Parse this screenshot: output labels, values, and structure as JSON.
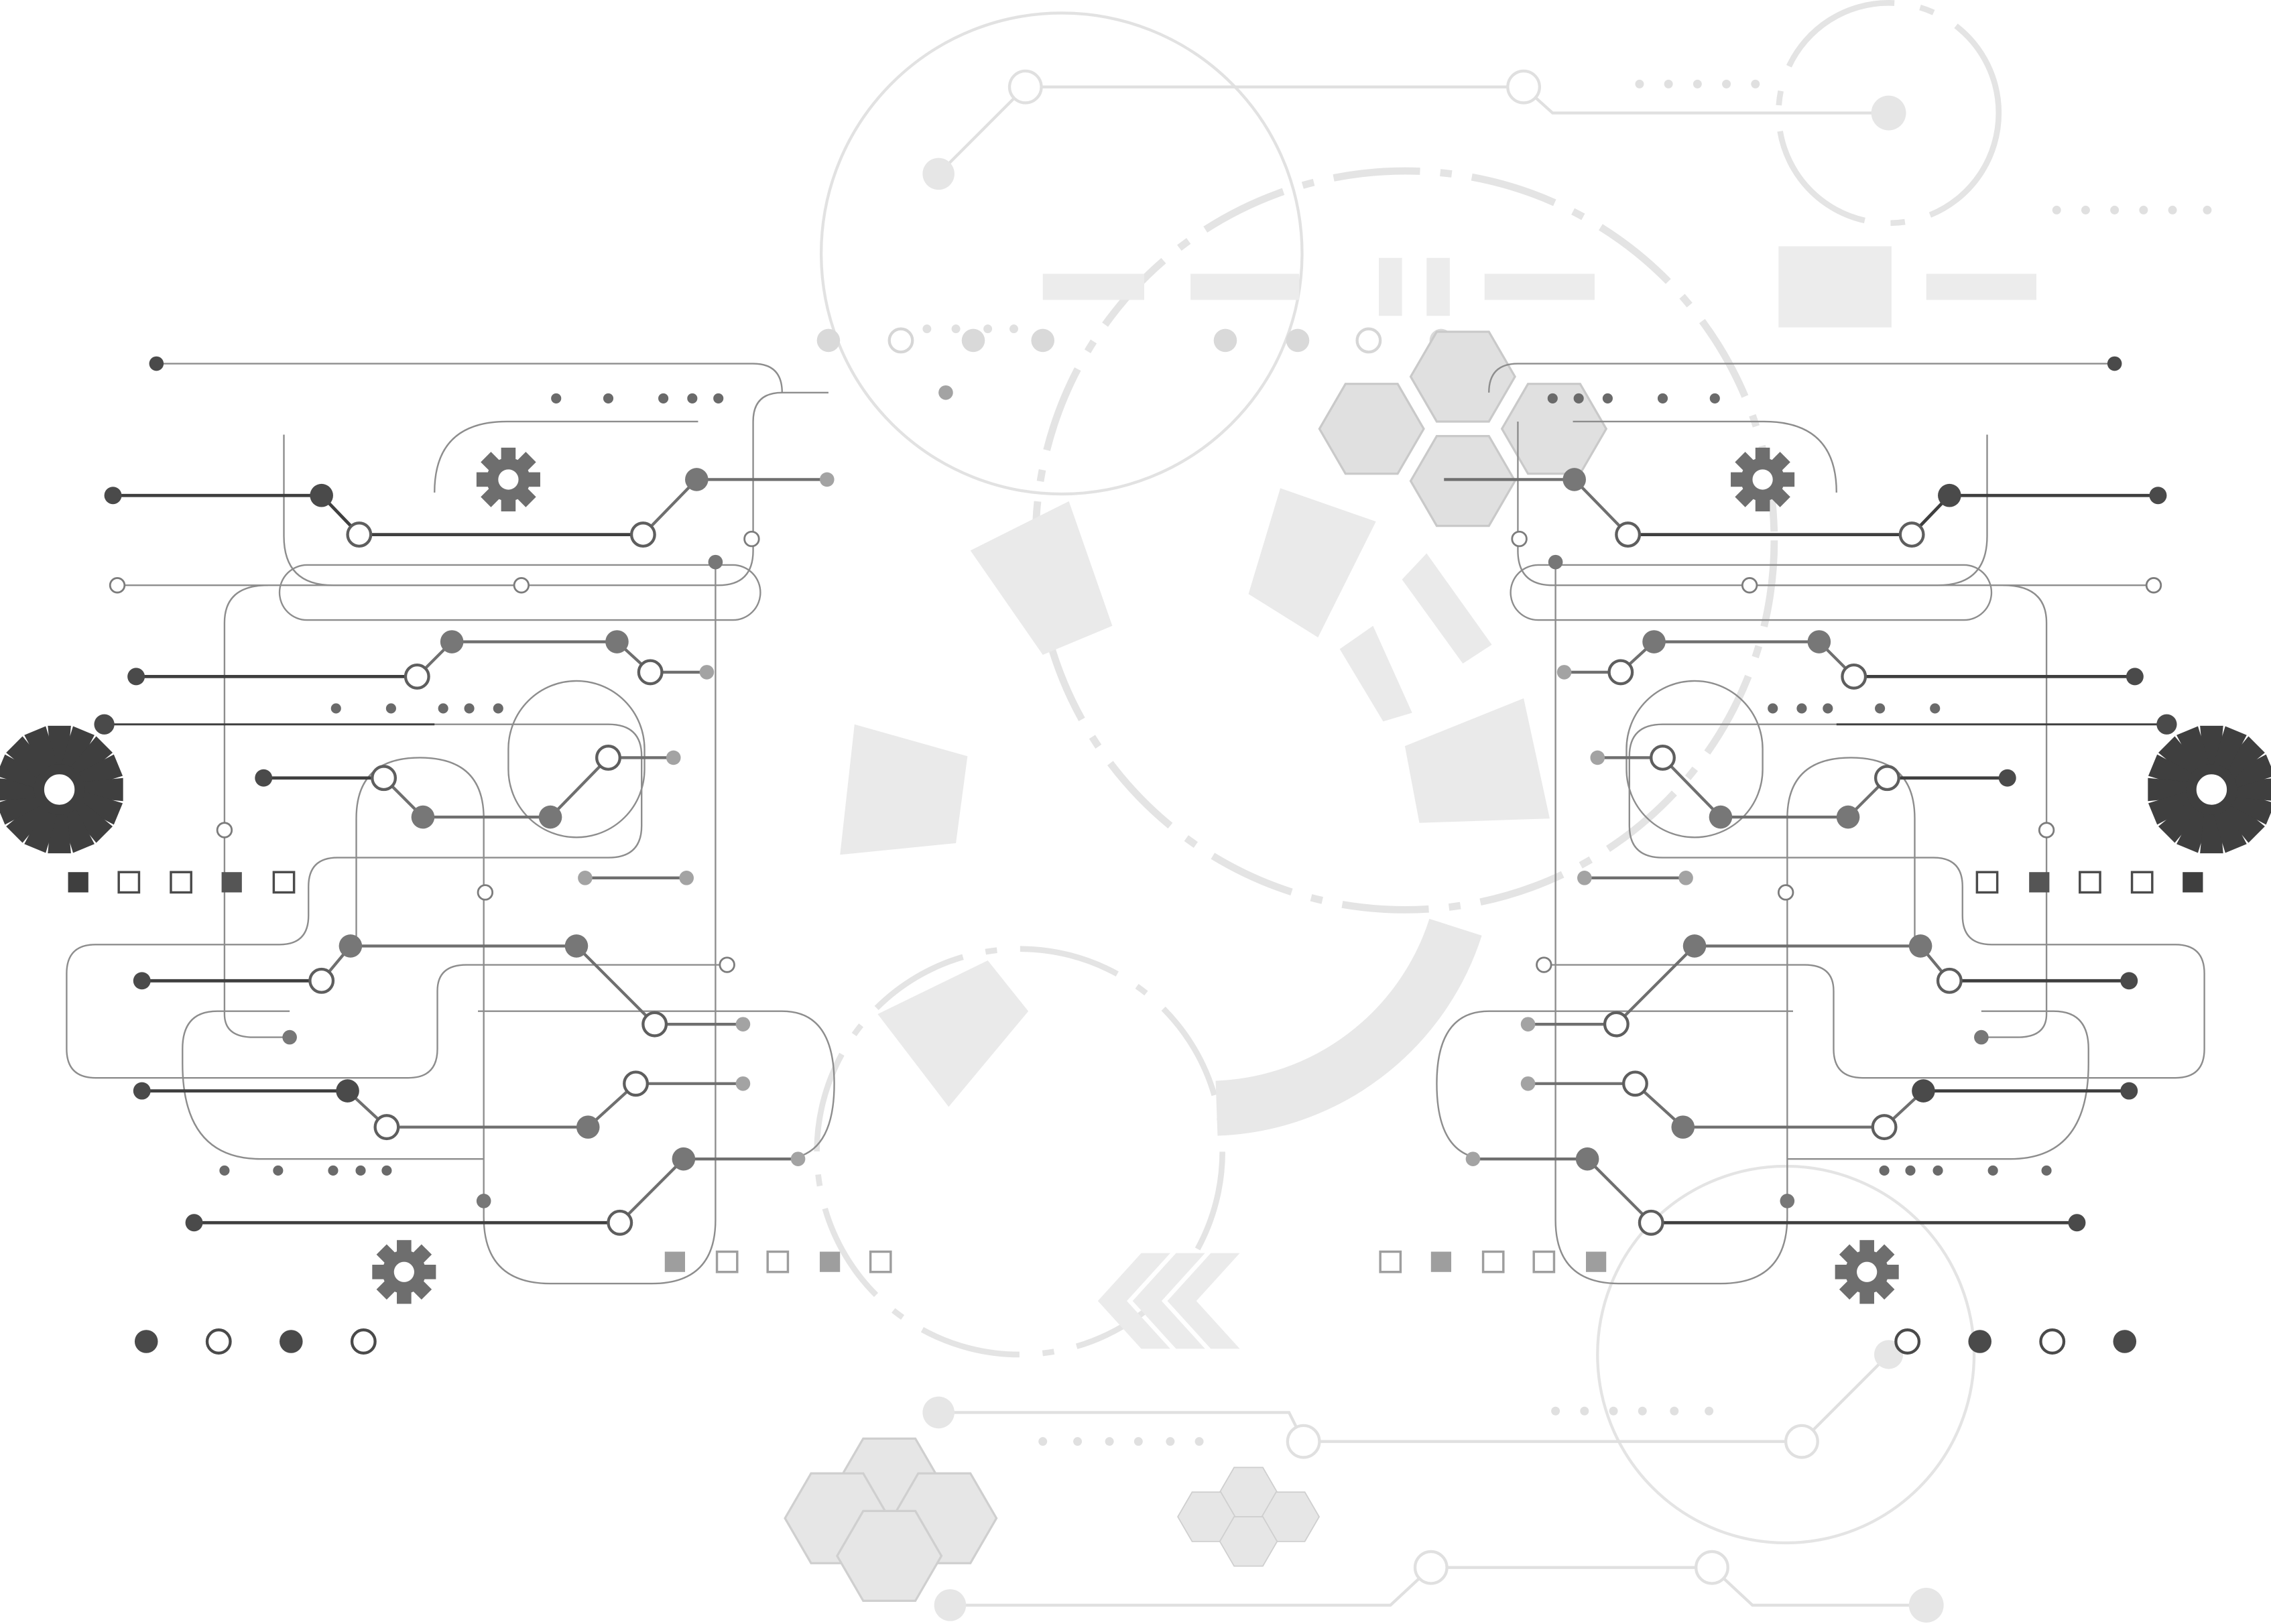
{
  "title": "",
  "colors": {
    "background": "#ffffff",
    "dark": "#4d4d4d",
    "mid": "#808080",
    "light_line": "#9a9a9a",
    "faint": "#dcdcdc",
    "faint_fill": "#ebebeb"
  },
  "icons": {
    "gear": "gear-icon",
    "sunburst": "sunburst-gear-icon",
    "hexagon": "hexagon-cluster-icon",
    "chevron": "chevron-left-icon"
  },
  "decor": {
    "style": "symmetric circuit board",
    "mirrored": true,
    "square_rows": [
      {
        "pattern": [
          "filled",
          "empty",
          "empty",
          "filled",
          "empty"
        ]
      },
      {
        "pattern": [
          "filled",
          "empty",
          "empty",
          "filled",
          "empty"
        ]
      }
    ],
    "dot_row": [
      "filled",
      "empty",
      "filled",
      "empty"
    ]
  }
}
